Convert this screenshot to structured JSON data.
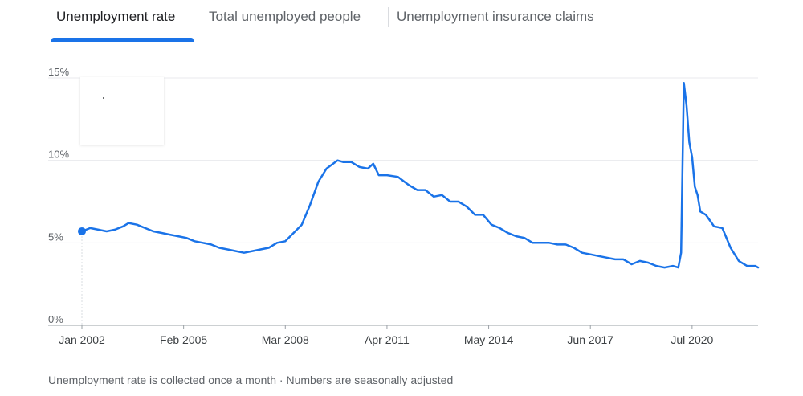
{
  "tabs": [
    {
      "label": "Unemployment rate",
      "active": true
    },
    {
      "label": "Total unemployed people",
      "active": false
    },
    {
      "label": "Unemployment insurance claims",
      "active": false
    }
  ],
  "accent_color": "#1a73e8",
  "footnote": "Unemployment rate is collected once a month · Numbers are seasonally adjusted",
  "chart_data": {
    "type": "line",
    "title": "",
    "xlabel": "",
    "ylabel": "",
    "x_ticks": [
      "Jan 2002",
      "Feb 2005",
      "Mar 2008",
      "Apr 2011",
      "May 2014",
      "Jun 2017",
      "Jul 2020"
    ],
    "y_ticks": [
      "0%",
      "5%",
      "10%",
      "15%"
    ],
    "ylim": [
      0,
      15
    ],
    "xlim": [
      "2002-01",
      "2022-07"
    ],
    "grid": true,
    "line_color": "#1a73e8",
    "highlighted_point": {
      "x": "2002-01",
      "y": 5.7
    },
    "series": [
      {
        "points": [
          [
            "2002-01",
            5.7
          ],
          [
            "2002-04",
            5.9
          ],
          [
            "2002-07",
            5.8
          ],
          [
            "2002-10",
            5.7
          ],
          [
            "2003-01",
            5.8
          ],
          [
            "2003-04",
            6.0
          ],
          [
            "2003-06",
            6.2
          ],
          [
            "2003-09",
            6.1
          ],
          [
            "2003-12",
            5.9
          ],
          [
            "2004-03",
            5.7
          ],
          [
            "2004-06",
            5.6
          ],
          [
            "2004-09",
            5.5
          ],
          [
            "2004-12",
            5.4
          ],
          [
            "2005-03",
            5.3
          ],
          [
            "2005-06",
            5.1
          ],
          [
            "2005-09",
            5.0
          ],
          [
            "2005-12",
            4.9
          ],
          [
            "2006-03",
            4.7
          ],
          [
            "2006-06",
            4.6
          ],
          [
            "2006-09",
            4.5
          ],
          [
            "2006-12",
            4.4
          ],
          [
            "2007-03",
            4.5
          ],
          [
            "2007-06",
            4.6
          ],
          [
            "2007-09",
            4.7
          ],
          [
            "2007-12",
            5.0
          ],
          [
            "2008-03",
            5.1
          ],
          [
            "2008-06",
            5.6
          ],
          [
            "2008-09",
            6.1
          ],
          [
            "2008-12",
            7.3
          ],
          [
            "2009-03",
            8.7
          ],
          [
            "2009-06",
            9.5
          ],
          [
            "2009-10",
            10.0
          ],
          [
            "2009-12",
            9.9
          ],
          [
            "2010-03",
            9.9
          ],
          [
            "2010-06",
            9.6
          ],
          [
            "2010-09",
            9.5
          ],
          [
            "2010-11",
            9.8
          ],
          [
            "2011-01",
            9.1
          ],
          [
            "2011-04",
            9.1
          ],
          [
            "2011-08",
            9.0
          ],
          [
            "2011-12",
            8.5
          ],
          [
            "2012-03",
            8.2
          ],
          [
            "2012-06",
            8.2
          ],
          [
            "2012-09",
            7.8
          ],
          [
            "2012-12",
            7.9
          ],
          [
            "2013-03",
            7.5
          ],
          [
            "2013-06",
            7.5
          ],
          [
            "2013-09",
            7.2
          ],
          [
            "2013-12",
            6.7
          ],
          [
            "2014-03",
            6.7
          ],
          [
            "2014-06",
            6.1
          ],
          [
            "2014-09",
            5.9
          ],
          [
            "2014-12",
            5.6
          ],
          [
            "2015-03",
            5.4
          ],
          [
            "2015-06",
            5.3
          ],
          [
            "2015-09",
            5.0
          ],
          [
            "2015-12",
            5.0
          ],
          [
            "2016-03",
            5.0
          ],
          [
            "2016-06",
            4.9
          ],
          [
            "2016-09",
            4.9
          ],
          [
            "2016-12",
            4.7
          ],
          [
            "2017-03",
            4.4
          ],
          [
            "2017-06",
            4.3
          ],
          [
            "2017-09",
            4.2
          ],
          [
            "2017-12",
            4.1
          ],
          [
            "2018-03",
            4.0
          ],
          [
            "2018-06",
            4.0
          ],
          [
            "2018-09",
            3.7
          ],
          [
            "2018-12",
            3.9
          ],
          [
            "2019-03",
            3.8
          ],
          [
            "2019-06",
            3.6
          ],
          [
            "2019-09",
            3.5
          ],
          [
            "2019-12",
            3.6
          ],
          [
            "2020-02",
            3.5
          ],
          [
            "2020-03",
            4.4
          ],
          [
            "2020-04",
            14.7
          ],
          [
            "2020-05",
            13.3
          ],
          [
            "2020-06",
            11.1
          ],
          [
            "2020-07",
            10.2
          ],
          [
            "2020-08",
            8.4
          ],
          [
            "2020-09",
            7.9
          ],
          [
            "2020-10",
            6.9
          ],
          [
            "2020-12",
            6.7
          ],
          [
            "2021-03",
            6.0
          ],
          [
            "2021-06",
            5.9
          ],
          [
            "2021-09",
            4.7
          ],
          [
            "2021-12",
            3.9
          ],
          [
            "2022-03",
            3.6
          ],
          [
            "2022-06",
            3.6
          ],
          [
            "2022-07",
            3.5
          ]
        ]
      }
    ]
  }
}
